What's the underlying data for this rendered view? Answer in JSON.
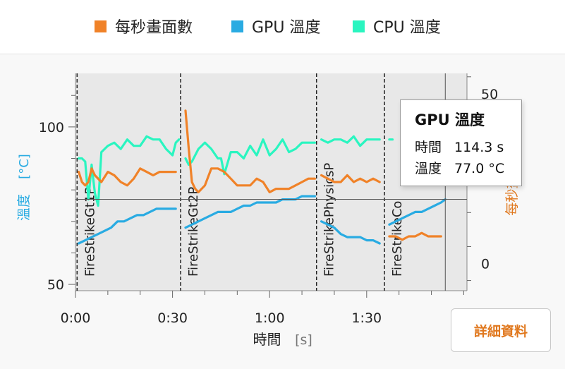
{
  "legend": {
    "items": [
      {
        "label": "每秒畫面數",
        "color": "#f08228"
      },
      {
        "label": "GPU 溫度",
        "color": "#29abe2"
      },
      {
        "label": "CPU 溫度",
        "color": "#2af5c0"
      }
    ]
  },
  "tooltip": {
    "title": "GPU 溫度",
    "time_key": "時間",
    "time_value": "114.3 s",
    "temp_key": "溫度",
    "temp_value": "77.0 °C"
  },
  "details_button": {
    "label": "詳細資料"
  },
  "colors": {
    "fps": "#f08228",
    "gpu": "#29abe2",
    "cpu": "#2af5c0",
    "plot_bg": "#e8e8e8",
    "left_axis": "#29abe2",
    "right_axis": "#e0781e"
  },
  "chart_data": {
    "type": "line",
    "xlabel": "時間",
    "xlabel_unit": "[s]",
    "ylabel": "溫度",
    "ylabel_unit": "[°C]",
    "y2label": "每秒畫面數",
    "xlim": [
      0,
      121
    ],
    "ylim": [
      48,
      117
    ],
    "y2lim": [
      -8,
      56
    ],
    "x_ticks": [
      0,
      30,
      60,
      90
    ],
    "x_tick_labels": [
      "0:00",
      "0:30",
      "1:00",
      "1:30"
    ],
    "y_ticks": [
      50,
      100
    ],
    "y2_ticks": [
      0,
      50
    ],
    "test_markers": [
      {
        "x": 0.5,
        "label": "FireStrikeGt1P"
      },
      {
        "x": 32.5,
        "label": "FireStrikeGt2P"
      },
      {
        "x": 74.5,
        "label": "FireStrikePhysicsP"
      },
      {
        "x": 95.5,
        "label": "FireStrikeCo"
      }
    ],
    "series": [
      {
        "name": "CPU 溫度",
        "axis": "left",
        "segments": [
          [
            [
              1,
              90
            ],
            [
              2,
              90
            ],
            [
              3,
              89
            ],
            [
              4,
              77
            ],
            [
              5,
              88
            ],
            [
              6,
              79
            ],
            [
              7,
              75
            ],
            [
              8,
              92
            ],
            [
              10,
              94
            ],
            [
              12,
              95
            ],
            [
              14,
              93
            ],
            [
              16,
              96
            ],
            [
              18,
              94
            ],
            [
              20,
              94
            ],
            [
              22,
              97
            ],
            [
              24,
              96
            ],
            [
              26,
              96
            ],
            [
              28,
              93
            ],
            [
              30,
              91
            ],
            [
              31,
              95
            ],
            [
              32,
              96
            ]
          ],
          [
            [
              34,
              90
            ],
            [
              35,
              88
            ],
            [
              36,
              89
            ],
            [
              38,
              93
            ],
            [
              40,
              95
            ],
            [
              42,
              93
            ],
            [
              44,
              90
            ],
            [
              45,
              90
            ],
            [
              46,
              85
            ],
            [
              48,
              92
            ],
            [
              50,
              92
            ],
            [
              52,
              90
            ],
            [
              54,
              94
            ],
            [
              56,
              91
            ],
            [
              58,
              96
            ],
            [
              60,
              91
            ],
            [
              62,
              93
            ],
            [
              64,
              96
            ],
            [
              66,
              92
            ],
            [
              68,
              93
            ],
            [
              70,
              95
            ],
            [
              72,
              95
            ],
            [
              74,
              95
            ]
          ],
          [
            [
              76,
              96
            ],
            [
              78,
              95
            ],
            [
              80,
              96
            ],
            [
              82,
              96
            ],
            [
              84,
              95
            ],
            [
              86,
              97
            ],
            [
              88,
              94
            ],
            [
              90,
              96
            ],
            [
              92,
              96
            ],
            [
              94,
              96
            ]
          ],
          [
            [
              97,
              96
            ],
            [
              98,
              96
            ]
          ]
        ]
      },
      {
        "name": "GPU 溫度",
        "axis": "left",
        "segments": [
          [
            [
              1,
              63
            ],
            [
              3,
              64
            ],
            [
              5,
              65
            ],
            [
              7,
              66
            ],
            [
              9,
              67
            ],
            [
              11,
              68
            ],
            [
              13,
              70
            ],
            [
              15,
              70
            ],
            [
              17,
              71
            ],
            [
              19,
              72
            ],
            [
              21,
              72
            ],
            [
              23,
              73
            ],
            [
              25,
              74
            ],
            [
              27,
              74
            ],
            [
              29,
              74
            ],
            [
              31,
              74
            ]
          ],
          [
            [
              34,
              68
            ],
            [
              36,
              69
            ],
            [
              38,
              70
            ],
            [
              40,
              71
            ],
            [
              42,
              72
            ],
            [
              44,
              73
            ],
            [
              46,
              73
            ],
            [
              48,
              73
            ],
            [
              50,
              74
            ],
            [
              52,
              75
            ],
            [
              54,
              75
            ],
            [
              56,
              76
            ],
            [
              58,
              76
            ],
            [
              60,
              76
            ],
            [
              62,
              76
            ],
            [
              64,
              77
            ],
            [
              66,
              77
            ],
            [
              68,
              77
            ],
            [
              70,
              78
            ],
            [
              72,
              78
            ],
            [
              74,
              78
            ]
          ],
          [
            [
              76,
              70
            ],
            [
              78,
              69
            ],
            [
              80,
              68
            ],
            [
              82,
              66
            ],
            [
              84,
              65
            ],
            [
              86,
              65
            ],
            [
              88,
              65
            ],
            [
              90,
              64
            ],
            [
              92,
              64
            ],
            [
              94,
              63
            ]
          ],
          [
            [
              97,
              69
            ],
            [
              99,
              70
            ],
            [
              101,
              71
            ],
            [
              103,
              72
            ],
            [
              105,
              73
            ],
            [
              107,
              73
            ],
            [
              109,
              74
            ],
            [
              111,
              75
            ],
            [
              113,
              76
            ],
            [
              114.3,
              77
            ]
          ]
        ]
      },
      {
        "name": "每秒畫面數",
        "axis": "right",
        "segments": [
          [
            [
              1,
              27
            ],
            [
              2,
              24
            ],
            [
              3,
              23
            ],
            [
              4,
              24
            ],
            [
              5,
              28
            ],
            [
              6,
              26
            ],
            [
              8,
              24
            ],
            [
              10,
              27
            ],
            [
              12,
              26
            ],
            [
              14,
              24
            ],
            [
              16,
              23
            ],
            [
              18,
              25
            ],
            [
              20,
              28
            ],
            [
              22,
              27
            ],
            [
              24,
              26
            ],
            [
              26,
              27
            ],
            [
              28,
              27
            ],
            [
              30,
              27
            ],
            [
              31,
              27
            ]
          ],
          [
            [
              34,
              45
            ],
            [
              35,
              34
            ],
            [
              36,
              24
            ],
            [
              37,
              22
            ],
            [
              38,
              21
            ],
            [
              40,
              23
            ],
            [
              42,
              28
            ],
            [
              44,
              28
            ],
            [
              46,
              27
            ],
            [
              48,
              25
            ],
            [
              50,
              23
            ],
            [
              52,
              23
            ],
            [
              54,
              23
            ],
            [
              56,
              25
            ],
            [
              58,
              24
            ],
            [
              60,
              21
            ],
            [
              62,
              22
            ],
            [
              64,
              22
            ],
            [
              66,
              22
            ],
            [
              68,
              23
            ],
            [
              70,
              24
            ],
            [
              72,
              25
            ],
            [
              74,
              25
            ]
          ],
          [
            [
              76,
              26
            ],
            [
              78,
              25
            ],
            [
              80,
              24
            ],
            [
              82,
              24
            ],
            [
              84,
              26
            ],
            [
              86,
              24
            ],
            [
              88,
              25
            ],
            [
              90,
              24
            ],
            [
              92,
              25
            ],
            [
              94,
              24
            ]
          ],
          [
            [
              97,
              8
            ],
            [
              99,
              8
            ],
            [
              101,
              7
            ],
            [
              103,
              8
            ],
            [
              105,
              8
            ],
            [
              107,
              9
            ],
            [
              109,
              8
            ],
            [
              111,
              8
            ],
            [
              113,
              8
            ]
          ]
        ]
      }
    ],
    "crosshair": {
      "x": 114.3,
      "y": 77.0
    }
  }
}
